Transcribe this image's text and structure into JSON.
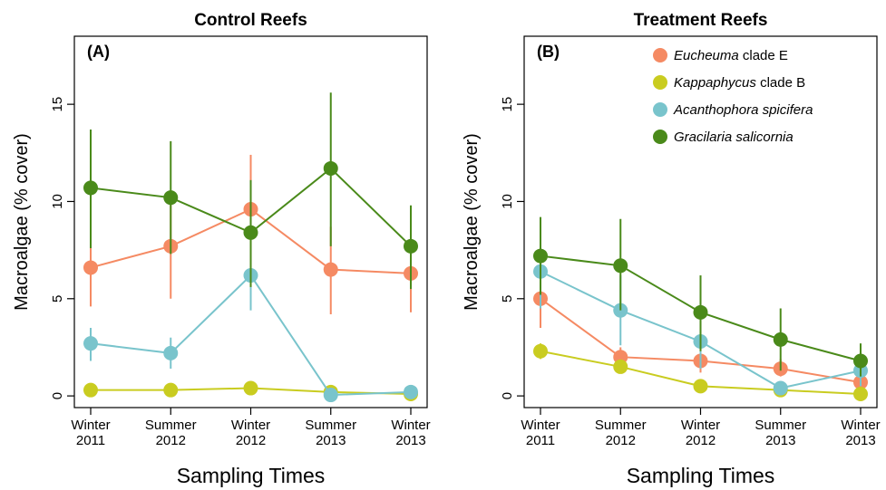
{
  "chart_data": [
    {
      "type": "line",
      "title": "Control Reefs",
      "panel_label": "(A)",
      "xlabel": "Sampling Times",
      "ylabel": "Macroalgae (% cover)",
      "categories": [
        [
          "Winter",
          "2011"
        ],
        [
          "Summer",
          "2012"
        ],
        [
          "Winter",
          "2012"
        ],
        [
          "Summer",
          "2013"
        ],
        [
          "Winter",
          "2013"
        ]
      ],
      "yticks": [
        "0",
        "5",
        "10",
        "15"
      ],
      "ylim": [
        -0.6,
        18.5
      ],
      "series": [
        {
          "name": "Eucheuma clade E",
          "color": "#f58a63",
          "values": [
            6.6,
            7.7,
            9.6,
            6.5,
            6.3
          ],
          "err_low": [
            4.6,
            5.0,
            6.9,
            4.2,
            4.3
          ],
          "err_high": [
            8.6,
            10.2,
            12.4,
            8.7,
            8.2
          ]
        },
        {
          "name": "Kappaphycus clade B",
          "color": "#c9cc20",
          "values": [
            0.3,
            0.3,
            0.4,
            0.2,
            0.1
          ],
          "err_low": [
            0.1,
            0.1,
            0.2,
            0.0,
            0.0
          ],
          "err_high": [
            0.5,
            0.5,
            0.6,
            0.4,
            0.3
          ]
        },
        {
          "name": "Acanthophora spicifera",
          "color": "#79c4cc",
          "values": [
            2.7,
            2.2,
            6.2,
            0.05,
            0.2
          ],
          "err_low": [
            1.8,
            1.4,
            4.4,
            0.0,
            0.0
          ],
          "err_high": [
            3.5,
            3.0,
            8.0,
            0.2,
            0.4
          ]
        },
        {
          "name": "Gracilaria salicornia",
          "color": "#4a8a1a",
          "values": [
            10.7,
            10.2,
            8.4,
            11.7,
            7.7
          ],
          "err_low": [
            7.6,
            7.3,
            5.6,
            7.7,
            5.5
          ],
          "err_high": [
            13.7,
            13.1,
            11.1,
            15.6,
            9.8
          ]
        }
      ]
    },
    {
      "type": "line",
      "title": "Treatment Reefs",
      "panel_label": "(B)",
      "xlabel": "Sampling Times",
      "ylabel": "Macroalgae (% cover)",
      "categories": [
        [
          "Winter",
          "2011"
        ],
        [
          "Summer",
          "2012"
        ],
        [
          "Winter",
          "2012"
        ],
        [
          "Summer",
          "2013"
        ],
        [
          "Winter",
          "2013"
        ]
      ],
      "yticks": [
        "0",
        "5",
        "10",
        "15"
      ],
      "ylim": [
        -0.6,
        18.5
      ],
      "legend": {
        "position": "top-right",
        "items": [
          {
            "italic": "Eucheuma",
            "rest": " clade E",
            "color": "#f58a63"
          },
          {
            "italic": "Kappaphycus",
            "rest": " clade B",
            "color": "#c9cc20"
          },
          {
            "italic": "Acanthophora spicifera",
            "rest": "",
            "color": "#79c4cc"
          },
          {
            "italic": "Gracilaria salicornia",
            "rest": "",
            "color": "#4a8a1a"
          }
        ]
      },
      "series": [
        {
          "name": "Eucheuma clade E",
          "color": "#f58a63",
          "values": [
            5.0,
            2.0,
            1.8,
            1.4,
            0.7
          ],
          "err_low": [
            3.5,
            1.5,
            1.2,
            1.0,
            0.4
          ],
          "err_high": [
            6.4,
            2.5,
            2.4,
            1.9,
            1.0
          ]
        },
        {
          "name": "Kappaphycus clade B",
          "color": "#c9cc20",
          "values": [
            2.3,
            1.5,
            0.5,
            0.3,
            0.1
          ],
          "err_low": [
            1.9,
            1.2,
            0.3,
            0.1,
            0.0
          ],
          "err_high": [
            2.7,
            1.8,
            0.7,
            0.5,
            0.2
          ]
        },
        {
          "name": "Acanthophora spicifera",
          "color": "#79c4cc",
          "values": [
            6.4,
            4.4,
            2.8,
            0.4,
            1.3
          ],
          "err_low": [
            4.5,
            2.6,
            1.4,
            0.1,
            0.5
          ],
          "err_high": [
            8.3,
            6.2,
            4.1,
            0.7,
            2.1
          ]
        },
        {
          "name": "Gracilaria salicornia",
          "color": "#4a8a1a",
          "values": [
            7.2,
            6.7,
            4.3,
            2.9,
            1.8
          ],
          "err_low": [
            5.2,
            4.4,
            2.3,
            1.3,
            1.0
          ],
          "err_high": [
            9.2,
            9.1,
            6.2,
            4.5,
            2.7
          ]
        }
      ]
    }
  ]
}
